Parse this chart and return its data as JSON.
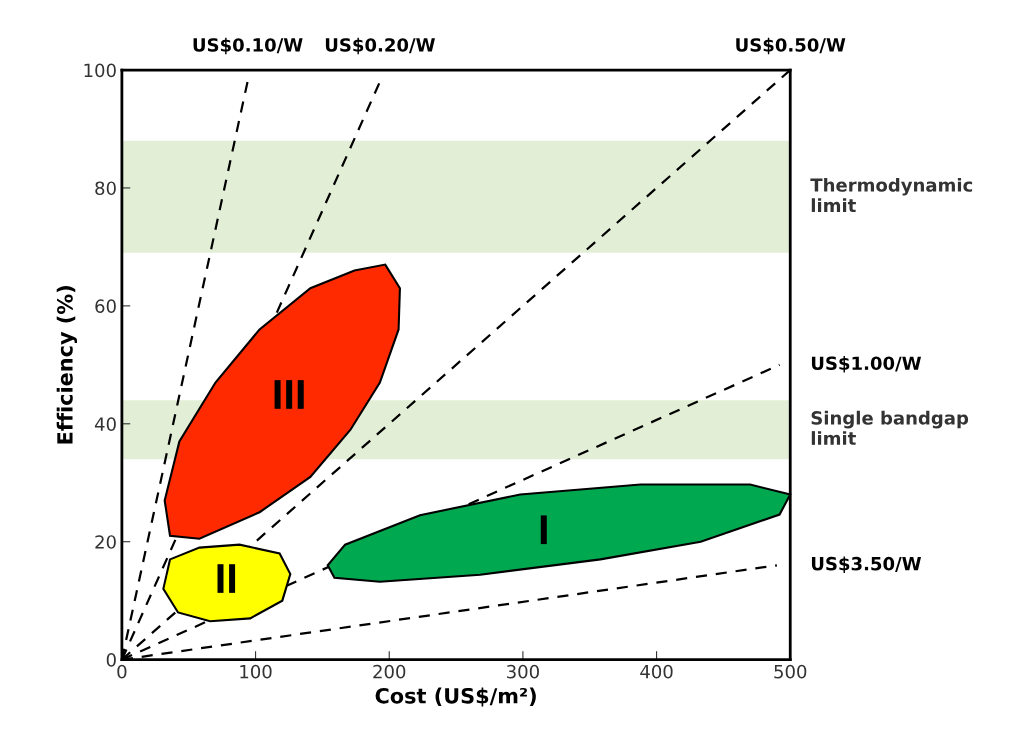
{
  "chart_data": {
    "type": "line",
    "xlabel": "Cost (US$/m²)",
    "ylabel": "Efficiency (%)",
    "xlim": [
      0,
      500
    ],
    "ylim": [
      0,
      100
    ],
    "xticks": [
      0,
      100,
      200,
      300,
      400,
      500
    ],
    "yticks": [
      0,
      20,
      40,
      60,
      80,
      100
    ],
    "grid": false,
    "legend": false,
    "bands": [
      {
        "axis": "y",
        "from": 69,
        "to": 88,
        "label": "Thermodynamic\nlimit",
        "color": "#e2efd6"
      },
      {
        "axis": "y",
        "from": 34,
        "to": 44,
        "label": "Single bandgap\nlimit",
        "color": "#e2efd6"
      }
    ],
    "series": [
      {
        "name": "US$0.10/W",
        "line_style": "dashed",
        "color": "#000000",
        "x": [
          0,
          94
        ],
        "values": [
          0,
          98
        ]
      },
      {
        "name": "US$0.20/W",
        "line_style": "dashed",
        "color": "#000000",
        "x": [
          0,
          193
        ],
        "values": [
          0,
          98
        ]
      },
      {
        "name": "US$0.50/W",
        "line_style": "dashed",
        "color": "#000000",
        "x": [
          0,
          500
        ],
        "values": [
          0,
          100
        ]
      },
      {
        "name": "US$1.00/W",
        "line_style": "dashed",
        "color": "#000000",
        "x": [
          0,
          492
        ],
        "values": [
          0,
          50
        ]
      },
      {
        "name": "US$3.50/W",
        "line_style": "dashed",
        "color": "#000000",
        "x": [
          0,
          490
        ],
        "values": [
          0,
          16
        ]
      },
      {
        "name": "III",
        "type": "area",
        "color": "#ff2a00",
        "x": [
          197,
          208,
          207,
          193,
          171,
          141,
          103,
          58,
          36,
          32,
          43,
          70,
          103,
          141,
          174
        ],
        "values": [
          67,
          63,
          56,
          47,
          39,
          31,
          25,
          20.5,
          21,
          27,
          37,
          47,
          56,
          63,
          66
        ]
      },
      {
        "name": "II",
        "type": "area",
        "color": "#ffff00",
        "x": [
          31,
          36,
          58,
          88,
          118,
          126,
          120,
          96,
          66,
          42
        ],
        "values": [
          12,
          17,
          19,
          19.5,
          18,
          14.5,
          10,
          7,
          6.5,
          8
        ]
      },
      {
        "name": "I",
        "type": "area",
        "color": "#00a94f",
        "x": [
          154,
          167,
          223,
          298,
          388,
          470,
          500,
          492,
          433,
          358,
          268,
          193,
          159
        ],
        "values": [
          16,
          19.5,
          24.5,
          28,
          29.7,
          29.7,
          28,
          24.6,
          20,
          17,
          14.4,
          13.2,
          13.9
        ]
      }
    ]
  }
}
